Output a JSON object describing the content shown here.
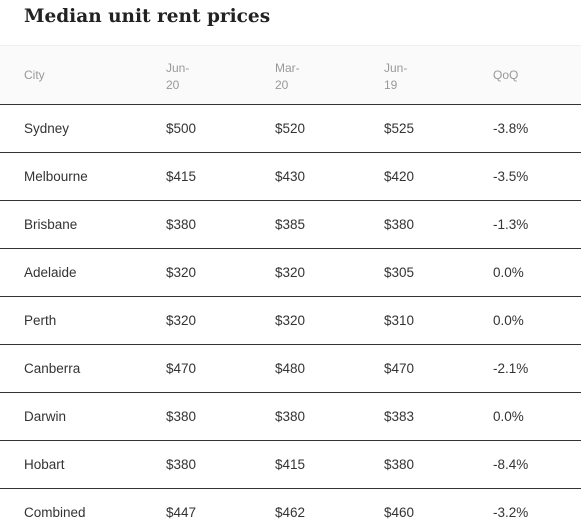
{
  "chart_data": {
    "type": "table",
    "title": "Median unit rent prices",
    "columns": [
      "City",
      "Jun-\n20",
      "Mar-\n20",
      "Jun-\n19",
      "QoQ"
    ],
    "rows": [
      [
        "Sydney",
        "$500",
        "$520",
        "$525",
        "-3.8%"
      ],
      [
        "Melbourne",
        "$415",
        "$430",
        "$420",
        "-3.5%"
      ],
      [
        "Brisbane",
        "$380",
        "$385",
        "$380",
        "-1.3%"
      ],
      [
        "Adelaide",
        "$320",
        "$320",
        "$305",
        "0.0%"
      ],
      [
        "Perth",
        "$320",
        "$320",
        "$310",
        "0.0%"
      ],
      [
        "Canberra",
        "$470",
        "$480",
        "$470",
        "-2.1%"
      ],
      [
        "Darwin",
        "$380",
        "$380",
        "$383",
        "0.0%"
      ],
      [
        "Hobart",
        "$380",
        "$415",
        "$380",
        "-8.4%"
      ],
      [
        "Combined",
        "$447",
        "$462",
        "$460",
        "-3.2%"
      ]
    ]
  },
  "colors": {
    "header_text": "#999999",
    "body_text": "#333333",
    "row_divider": "#333333",
    "header_background": "#fafafa"
  }
}
